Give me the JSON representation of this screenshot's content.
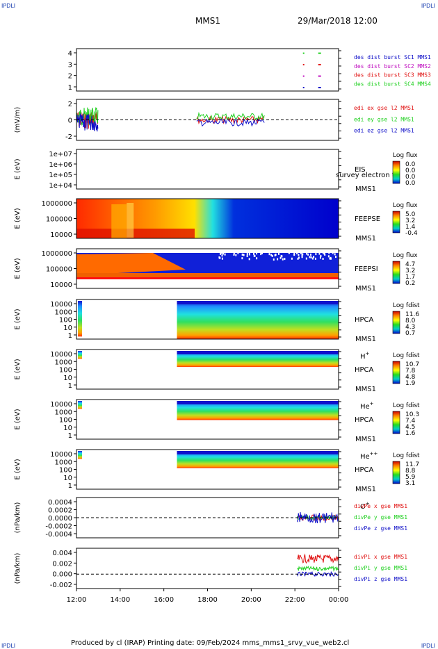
{
  "header": {
    "left": "IPDLI",
    "right": "IPDLI",
    "title": "MMS1",
    "date": "29/Mar/2018 12:00"
  },
  "footer": {
    "left": "IPDLI",
    "right": "IPDLI",
    "text": "Produced by cl (IRAP)   Printing date: 09/Feb/2024   mms_mms1_srvy_vue_web2.cl"
  },
  "time_axis": {
    "labels": [
      "12:00",
      "14:00",
      "16:00",
      "18:00",
      "20:00",
      "22:00",
      "00:00"
    ],
    "start_hour": 12,
    "end_hour": 24
  },
  "colors": {
    "blue": "#1010c8",
    "magenta": "#c010c0",
    "red": "#e01010",
    "green": "#20d020"
  },
  "chart_data": [
    {
      "type": "scatter",
      "panel": "burst",
      "ylabel": "",
      "yticks": [
        "4",
        "3",
        "2",
        "1"
      ],
      "ylim": [
        0.7,
        4.4
      ],
      "legend": [
        "des dist burst SC1 MMS1",
        "des dist burst SC2 MMS2",
        "des dist burst SC3 MMS3",
        "des dist burst SC4 MMS4"
      ],
      "series": [
        {
          "name": "des dist burst SC1 MMS1",
          "x": [
            22.4,
            23.1
          ],
          "values": [
            1,
            1
          ]
        },
        {
          "name": "des dist burst SC2 MMS2",
          "x": [
            22.4,
            23.1
          ],
          "values": [
            2,
            2
          ]
        },
        {
          "name": "des dist burst SC3 MMS3",
          "x": [
            22.4,
            23.1
          ],
          "values": [
            3,
            3
          ]
        },
        {
          "name": "des dist burst SC4 MMS4",
          "x": [
            22.4,
            23.1
          ],
          "values": [
            4,
            4
          ]
        }
      ]
    },
    {
      "type": "line",
      "panel": "edi",
      "ylabel": "(mV/m)",
      "yticks": [
        "2",
        "0",
        "-2"
      ],
      "ylim": [
        -3,
        3
      ],
      "legend": [
        "edi ex gse l2 MMS1",
        "edi ey gse l2 MMS1",
        "edi ez gse l2 MMS1"
      ]
    },
    {
      "type": "heatmap",
      "panel": "eis",
      "ylabel": "E (eV)",
      "yticks": [
        "1e+07",
        "1e+06",
        "1e+05",
        "1e+04"
      ],
      "instrument": [
        "EIS",
        "MMS1"
      ],
      "overlay_text": "survey electron to",
      "cbar_title": "Log flux",
      "cbar_ticks": [
        "0.0",
        "0.0",
        "0.0",
        "0.0"
      ]
    },
    {
      "type": "heatmap",
      "panel": "feepse",
      "ylabel": "E (eV)",
      "yticks": [
        "1000000",
        "100000",
        "10000"
      ],
      "instrument": [
        "FEEPSE",
        "MMS1"
      ],
      "cbar_title": "Log flux",
      "cbar_ticks": [
        "5.0",
        "3.2",
        "1.4",
        "-0.4"
      ]
    },
    {
      "type": "heatmap",
      "panel": "feepsi",
      "ylabel": "E (eV)",
      "yticks": [
        "1000000",
        "100000",
        "10000"
      ],
      "instrument": [
        "FEEPSI",
        "MMS1"
      ],
      "cbar_title": "Log flux",
      "cbar_ticks": [
        "4.7",
        "3.2",
        "1.7",
        "0.2"
      ]
    },
    {
      "type": "heatmap",
      "panel": "hpca-h",
      "ylabel": "E (eV)",
      "yticks": [
        "10000",
        "1000",
        "100",
        "10",
        "1"
      ],
      "instrument": [
        "HPCA",
        "MMS1"
      ],
      "species": "H",
      "species_sup": "+",
      "cbar_title": "Log fdist",
      "cbar_ticks": [
        "11.6",
        "8.0",
        "4.3",
        "0.7"
      ]
    },
    {
      "type": "heatmap",
      "panel": "hpca-he",
      "ylabel": "E (eV)",
      "yticks": [
        "10000",
        "1000",
        "100",
        "10",
        "1"
      ],
      "instrument": [
        "HPCA",
        "MMS1"
      ],
      "species": "He",
      "species_sup": "+",
      "cbar_title": "Log fdist",
      "cbar_ticks": [
        "10.7",
        "7.8",
        "4.8",
        "1.9"
      ]
    },
    {
      "type": "heatmap",
      "panel": "hpca-he2",
      "ylabel": "E (eV)",
      "yticks": [
        "10000",
        "1000",
        "100",
        "10",
        "1"
      ],
      "instrument": [
        "HPCA",
        "MMS1"
      ],
      "species": "He",
      "species_sup": "++",
      "cbar_title": "Log fdist",
      "cbar_ticks": [
        "10.3",
        "7.4",
        "4.5",
        "1.6"
      ]
    },
    {
      "type": "heatmap",
      "panel": "hpca-o",
      "ylabel": "E (eV)",
      "yticks": [
        "10000",
        "1000",
        "100",
        "10",
        "1"
      ],
      "instrument": [
        "HPCA",
        "MMS1"
      ],
      "species": "O",
      "species_sup": "+",
      "cbar_title": "Log fdist",
      "cbar_ticks": [
        "11.7",
        "8.8",
        "5.9",
        "3.1"
      ]
    },
    {
      "type": "line",
      "panel": "divpe",
      "ylabel": "(nPa/km)",
      "yticks": [
        "0.0004",
        "0.0002",
        "0.0000",
        "-0.0002",
        "-0.0004"
      ],
      "ylim": [
        -0.0005,
        0.0005
      ],
      "legend": [
        "divPe x gse MMS1",
        "divPe y gse MMS1",
        "divPe z gse MMS1"
      ]
    },
    {
      "type": "line",
      "panel": "divpi",
      "ylabel": "(nPa/km)",
      "yticks": [
        "0.004",
        "0.002",
        "0.000",
        "-0.002"
      ],
      "ylim": [
        -0.0025,
        0.0045
      ],
      "legend": [
        "divPi x gse MMS1",
        "divPi y gse MMS1",
        "divPi z gse MMS1"
      ]
    }
  ]
}
